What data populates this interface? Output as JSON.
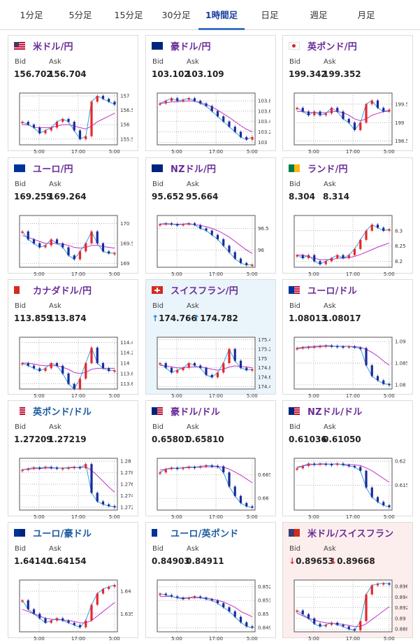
{
  "tabs": [
    {
      "label": "1分足",
      "active": false
    },
    {
      "label": "5分足",
      "active": false
    },
    {
      "label": "15分足",
      "active": false
    },
    {
      "label": "30分足",
      "active": false
    },
    {
      "label": "1時間足",
      "active": true
    },
    {
      "label": "日足",
      "active": false
    },
    {
      "label": "週足",
      "active": false
    },
    {
      "label": "月足",
      "active": false
    }
  ],
  "labels": {
    "bid": "Bid",
    "ask": "Ask"
  },
  "colors": {
    "up": "#e8262d",
    "down": "#1a2a9b",
    "ma": "#c233c8",
    "line": "#1f9ad8",
    "grid": "#999999"
  },
  "cards": [
    {
      "pair": "米ドル/円",
      "bid": "156.702",
      "ask": "156.704",
      "arrow": "",
      "flag": "us",
      "chart_data": {
        "type": "line",
        "x_ticks": [
          "5:00",
          "17:00",
          "5:00"
        ],
        "y_ticks": [
          "157",
          "156.5",
          "156",
          "155.5"
        ],
        "ylim": [
          155.3,
          157.1
        ],
        "values": [
          156.1,
          156.0,
          155.9,
          155.7,
          155.8,
          155.9,
          156.1,
          156.2,
          156.1,
          155.8,
          155.5,
          155.6,
          156.8,
          157.0,
          156.9,
          156.8,
          156.7
        ],
        "ma": [
          156.0,
          156.0,
          155.9,
          155.9,
          155.9,
          155.9,
          155.95,
          156.0,
          156.0,
          155.95,
          155.9,
          155.85,
          155.95,
          156.1,
          156.2,
          156.3,
          156.4
        ]
      }
    },
    {
      "pair": "豪ドル/円",
      "bid": "103.102",
      "ask": "103.109",
      "arrow": "",
      "flag": "au",
      "chart_data": {
        "type": "line",
        "x_ticks": [
          "5:00",
          "17:00",
          "5:00"
        ],
        "y_ticks": [
          "103.8",
          "103.6",
          "103.4",
          "103.2",
          "103"
        ],
        "ylim": [
          102.95,
          103.95
        ],
        "values": [
          103.75,
          103.8,
          103.85,
          103.8,
          103.82,
          103.85,
          103.8,
          103.75,
          103.7,
          103.6,
          103.5,
          103.4,
          103.3,
          103.2,
          103.1,
          103.05,
          103.1
        ],
        "ma": [
          103.75,
          103.76,
          103.78,
          103.78,
          103.79,
          103.8,
          103.79,
          103.77,
          103.73,
          103.68,
          103.62,
          103.55,
          103.48,
          103.4,
          103.32,
          103.25,
          103.2
        ]
      }
    },
    {
      "pair": "英ポンド/円",
      "bid": "199.342",
      "ask": "199.352",
      "arrow": "",
      "flag": "gb",
      "chart_data": {
        "type": "line",
        "x_ticks": [
          "5:00",
          "17:00",
          "5:00"
        ],
        "y_ticks": [
          "199.5",
          "199",
          "198.5"
        ],
        "ylim": [
          198.4,
          199.8
        ],
        "values": [
          199.4,
          199.3,
          199.2,
          199.3,
          199.2,
          199.25,
          199.4,
          199.3,
          199.1,
          199.0,
          198.8,
          199.0,
          199.5,
          199.6,
          199.4,
          199.3,
          199.35
        ],
        "ma": [
          199.3,
          199.3,
          199.28,
          199.27,
          199.27,
          199.27,
          199.3,
          199.3,
          199.27,
          199.2,
          199.1,
          199.05,
          199.1,
          199.2,
          199.25,
          199.3,
          199.3
        ]
      }
    },
    {
      "pair": "ユーロ/円",
      "bid": "169.259",
      "ask": "169.264",
      "arrow": "",
      "flag": "eu",
      "chart_data": {
        "type": "line",
        "x_ticks": [
          "5:00",
          "17:00",
          "5:00"
        ],
        "y_ticks": [
          "170",
          "169.5",
          "169"
        ],
        "ylim": [
          168.9,
          170.2
        ],
        "values": [
          169.8,
          169.6,
          169.5,
          169.4,
          169.45,
          169.6,
          169.5,
          169.4,
          169.2,
          169.1,
          169.3,
          169.5,
          169.8,
          169.5,
          169.3,
          169.25,
          169.26
        ],
        "ma": [
          169.7,
          169.65,
          169.6,
          169.55,
          169.5,
          169.5,
          169.5,
          169.48,
          169.45,
          169.4,
          169.38,
          169.4,
          169.45,
          169.45,
          169.42,
          169.4,
          169.38
        ]
      }
    },
    {
      "pair": "NZドル/円",
      "bid": "95.652",
      "ask": "95.664",
      "arrow": "",
      "flag": "nz",
      "chart_data": {
        "type": "line",
        "x_ticks": [
          "5:00",
          "17:00",
          "5:00"
        ],
        "y_ticks": [
          "96.5",
          "96"
        ],
        "ylim": [
          95.6,
          96.8
        ],
        "values": [
          96.6,
          96.62,
          96.6,
          96.58,
          96.6,
          96.62,
          96.58,
          96.5,
          96.45,
          96.35,
          96.25,
          96.1,
          95.95,
          95.8,
          95.7,
          95.65,
          95.66
        ],
        "ma": [
          96.6,
          96.6,
          96.6,
          96.6,
          96.6,
          96.6,
          96.59,
          96.57,
          96.54,
          96.5,
          96.45,
          96.38,
          96.3,
          96.2,
          96.1,
          96.0,
          95.92
        ]
      }
    },
    {
      "pair": "ランド/円",
      "bid": "8.304",
      "ask": "8.314",
      "arrow": "",
      "flag": "za",
      "chart_data": {
        "type": "line",
        "x_ticks": [
          "5:00",
          "17:00",
          "5:00"
        ],
        "y_ticks": [
          "8.3",
          "8.25",
          "8.2"
        ],
        "ylim": [
          8.18,
          8.35
        ],
        "values": [
          8.22,
          8.21,
          8.22,
          8.2,
          8.19,
          8.2,
          8.21,
          8.22,
          8.21,
          8.22,
          8.24,
          8.27,
          8.3,
          8.32,
          8.31,
          8.3,
          8.305
        ],
        "ma": [
          8.22,
          8.22,
          8.215,
          8.21,
          8.205,
          8.205,
          8.205,
          8.21,
          8.21,
          8.212,
          8.216,
          8.222,
          8.23,
          8.238,
          8.246,
          8.253,
          8.26
        ]
      }
    },
    {
      "pair": "カナダドル/円",
      "bid": "113.859",
      "ask": "113.874",
      "arrow": "",
      "flag": "ca",
      "chart_data": {
        "type": "line",
        "x_ticks": [
          "5:00",
          "17:00",
          "5:00"
        ],
        "y_ticks": [
          "114.4",
          "114.2",
          "114",
          "113.8",
          "113.6"
        ],
        "ylim": [
          113.5,
          114.5
        ],
        "values": [
          114.0,
          113.95,
          113.9,
          113.85,
          113.9,
          114.0,
          113.95,
          113.8,
          113.6,
          113.5,
          113.7,
          114.0,
          114.3,
          114.0,
          113.9,
          113.85,
          113.86
        ],
        "ma": [
          114.0,
          114.0,
          113.98,
          113.96,
          113.95,
          113.95,
          113.95,
          113.92,
          113.88,
          113.82,
          113.8,
          113.82,
          113.88,
          113.9,
          113.9,
          113.9,
          113.9
        ]
      }
    },
    {
      "pair": "スイスフラン/円",
      "bid": "174.766",
      "ask": "174.782",
      "arrow": "up",
      "flag": "ch",
      "chart_data": {
        "type": "line",
        "x_ticks": [
          "5:00",
          "17:00",
          "5:00"
        ],
        "y_ticks": [
          "175.4",
          "175.2",
          "175",
          "174.8",
          "174.6",
          "174.4"
        ],
        "ylim": [
          174.35,
          175.45
        ],
        "values": [
          174.9,
          174.8,
          174.7,
          174.75,
          174.8,
          174.9,
          174.85,
          174.8,
          174.65,
          174.6,
          174.7,
          174.9,
          175.2,
          174.95,
          174.8,
          174.75,
          174.77
        ],
        "ma": [
          174.85,
          174.84,
          174.82,
          174.8,
          174.8,
          174.82,
          174.82,
          174.82,
          174.8,
          174.77,
          174.75,
          174.77,
          174.82,
          174.84,
          174.83,
          174.82,
          174.8
        ]
      }
    },
    {
      "pair": "ユーロ/ドル",
      "bid": "1.08013",
      "ask": "1.08017",
      "arrow": "",
      "flag": "eu-us",
      "chart_data": {
        "type": "line",
        "x_ticks": [
          "5:00",
          "17:00",
          "5:00"
        ],
        "y_ticks": [
          "1.09",
          "1.085",
          "1.08"
        ],
        "ylim": [
          1.079,
          1.091
        ],
        "values": [
          1.0885,
          1.0887,
          1.0888,
          1.0889,
          1.089,
          1.0891,
          1.089,
          1.0889,
          1.0888,
          1.0889,
          1.0886,
          1.0885,
          1.0845,
          1.082,
          1.081,
          1.0802,
          1.0801
        ],
        "ma": [
          1.0883,
          1.0885,
          1.0886,
          1.0887,
          1.0888,
          1.0889,
          1.0889,
          1.0889,
          1.0889,
          1.0889,
          1.0888,
          1.0887,
          1.0882,
          1.0875,
          1.0866,
          1.0855,
          1.0845
        ]
      }
    },
    {
      "pair": "英ポンド/ドル",
      "bid": "1.27209",
      "ask": "1.27219",
      "arrow": "",
      "flag": "gb-us",
      "chart_data": {
        "type": "line",
        "x_ticks": [
          "5:00",
          "17:00",
          "5:00"
        ],
        "y_ticks": [
          "1.28",
          "1.278",
          "1.276",
          "1.274",
          "1.272"
        ],
        "ylim": [
          1.2715,
          1.2805
        ],
        "values": [
          1.2785,
          1.2787,
          1.2789,
          1.2788,
          1.279,
          1.2789,
          1.2788,
          1.2788,
          1.2789,
          1.279,
          1.2788,
          1.2795,
          1.2745,
          1.273,
          1.2725,
          1.2722,
          1.2721
        ],
        "ma": [
          1.2785,
          1.2786,
          1.2787,
          1.2787,
          1.2788,
          1.2788,
          1.2788,
          1.2788,
          1.2788,
          1.2789,
          1.2789,
          1.279,
          1.2784,
          1.2775,
          1.2765,
          1.2755,
          1.2746
        ]
      }
    },
    {
      "pair": "豪ドル/ドル",
      "bid": "0.65801",
      "ask": "0.65810",
      "arrow": "",
      "flag": "au-us",
      "chart_data": {
        "type": "line",
        "x_ticks": [
          "5:00",
          "17:00",
          "5:00"
        ],
        "y_ticks": [
          "0.665",
          "0.66"
        ],
        "ylim": [
          0.6575,
          0.6685
        ],
        "values": [
          0.6655,
          0.6662,
          0.6665,
          0.6663,
          0.6665,
          0.6667,
          0.6666,
          0.6668,
          0.667,
          0.6669,
          0.6668,
          0.6655,
          0.6625,
          0.6605,
          0.659,
          0.6583,
          0.658
        ],
        "ma": [
          0.666,
          0.6662,
          0.6663,
          0.6664,
          0.6665,
          0.6665,
          0.6666,
          0.6666,
          0.6667,
          0.6667,
          0.6667,
          0.6666,
          0.6662,
          0.6656,
          0.6649,
          0.6641,
          0.6633
        ]
      }
    },
    {
      "pair": "NZドル/ドル",
      "bid": "0.61036",
      "ask": "0.61050",
      "arrow": "",
      "flag": "nz-us",
      "chart_data": {
        "type": "line",
        "x_ticks": [
          "5:00",
          "17:00",
          "5:00"
        ],
        "y_ticks": [
          "0.62",
          "0.615"
        ],
        "ylim": [
          0.6098,
          0.6206
        ],
        "values": [
          0.6185,
          0.619,
          0.6195,
          0.6193,
          0.6195,
          0.6194,
          0.6193,
          0.6195,
          0.6192,
          0.619,
          0.6188,
          0.618,
          0.6145,
          0.6125,
          0.6115,
          0.6108,
          0.6104
        ],
        "ma": [
          0.6188,
          0.619,
          0.6192,
          0.6193,
          0.6193,
          0.6194,
          0.6194,
          0.6194,
          0.6193,
          0.6193,
          0.6192,
          0.6191,
          0.6186,
          0.618,
          0.6172,
          0.6164,
          0.6156
        ]
      }
    },
    {
      "pair": "ユーロ/豪ドル",
      "bid": "1.64140",
      "ask": "1.64154",
      "arrow": "",
      "flag": "eu-au",
      "chart_data": {
        "type": "line",
        "x_ticks": [
          "5:00",
          "17:00",
          "5:00"
        ],
        "y_ticks": [
          "1.64",
          "1.635"
        ],
        "ylim": [
          1.631,
          1.6425
        ],
        "values": [
          1.638,
          1.636,
          1.635,
          1.634,
          1.633,
          1.6335,
          1.634,
          1.6335,
          1.633,
          1.6325,
          1.632,
          1.6335,
          1.637,
          1.6395,
          1.6405,
          1.641,
          1.6414
        ],
        "ma": [
          1.636,
          1.6355,
          1.635,
          1.6345,
          1.634,
          1.6338,
          1.6337,
          1.6336,
          1.6335,
          1.6333,
          1.633,
          1.633,
          1.6335,
          1.6345,
          1.6355,
          1.6365,
          1.6375
        ]
      }
    },
    {
      "pair": "ユーロ/英ポンド",
      "bid": "0.84903",
      "ask": "0.84911",
      "arrow": "",
      "flag": "eu-gb",
      "chart_data": {
        "type": "line",
        "x_ticks": [
          "5:00",
          "17:00",
          "5:00"
        ],
        "y_ticks": [
          "0.852",
          "0.851",
          "0.85",
          "0.849"
        ],
        "ylim": [
          0.8487,
          0.8525
        ],
        "values": [
          0.8515,
          0.8514,
          0.8513,
          0.8512,
          0.8511,
          0.8512,
          0.8513,
          0.8512,
          0.8511,
          0.851,
          0.8508,
          0.8505,
          0.8502,
          0.8498,
          0.8494,
          0.8491,
          0.849
        ],
        "ma": [
          0.8513,
          0.8513,
          0.8513,
          0.8512,
          0.8512,
          0.8512,
          0.8512,
          0.8512,
          0.8512,
          0.8511,
          0.851,
          0.8509,
          0.8507,
          0.8505,
          0.8502,
          0.85,
          0.8498
        ]
      }
    },
    {
      "pair": "米ドル/スイスフラン",
      "bid": "0.89653",
      "ask": "0.89668",
      "arrow": "down",
      "flag": "us-ch",
      "chart_data": {
        "type": "line",
        "x_ticks": [
          "5:00",
          "17:00",
          "5:00"
        ],
        "y_ticks": [
          "0.896",
          "0.894",
          "0.892",
          "0.89",
          "0.888"
        ],
        "ylim": [
          0.8875,
          0.8972
        ],
        "values": [
          0.8915,
          0.8908,
          0.89,
          0.889,
          0.8885,
          0.8888,
          0.8892,
          0.8888,
          0.8885,
          0.888,
          0.8878,
          0.8895,
          0.8945,
          0.8962,
          0.8965,
          0.8966,
          0.8965
        ],
        "ma": [
          0.891,
          0.8905,
          0.89,
          0.8897,
          0.8894,
          0.8892,
          0.8891,
          0.889,
          0.8889,
          0.8887,
          0.8885,
          0.8885,
          0.889,
          0.8898,
          0.8906,
          0.8914,
          0.8922
        ]
      }
    }
  ]
}
